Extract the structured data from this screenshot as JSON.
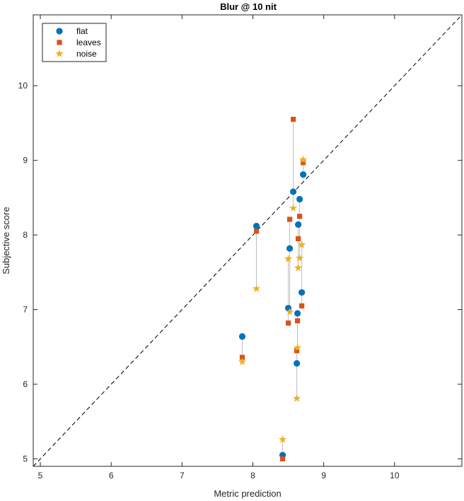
{
  "chart_data": {
    "type": "scatter",
    "title": "Blur @ 10 nit",
    "xlabel": "Metric prediction",
    "ylabel": "Subjective score",
    "xlim": [
      4.9,
      10.95
    ],
    "ylim": [
      4.9,
      10.95
    ],
    "xticks": [
      5,
      6,
      7,
      8,
      9,
      10
    ],
    "yticks": [
      5,
      6,
      7,
      8,
      9,
      10
    ],
    "grid": false,
    "legend_position": "top-left",
    "reference_line": "y = x (dashed)",
    "series": [
      {
        "name": "flat",
        "marker": "circle",
        "color": "#0072BD",
        "points": [
          [
            7.85,
            6.64
          ],
          [
            8.05,
            8.12
          ],
          [
            8.42,
            5.05
          ],
          [
            8.5,
            7.02
          ],
          [
            8.52,
            7.82
          ],
          [
            8.57,
            8.58
          ],
          [
            8.62,
            6.28
          ],
          [
            8.63,
            6.95
          ],
          [
            8.64,
            8.14
          ],
          [
            8.66,
            8.48
          ],
          [
            8.69,
            7.23
          ],
          [
            8.71,
            8.81
          ]
        ]
      },
      {
        "name": "leaves",
        "marker": "square",
        "color": "#D95319",
        "points": [
          [
            7.85,
            6.36
          ],
          [
            8.05,
            8.05
          ],
          [
            8.42,
            5.0
          ],
          [
            8.5,
            6.82
          ],
          [
            8.52,
            8.21
          ],
          [
            8.57,
            9.55
          ],
          [
            8.62,
            6.45
          ],
          [
            8.63,
            6.85
          ],
          [
            8.64,
            7.95
          ],
          [
            8.66,
            8.25
          ],
          [
            8.69,
            7.05
          ],
          [
            8.71,
            8.97
          ]
        ]
      },
      {
        "name": "noise",
        "marker": "star",
        "color": "#EDB120",
        "points": [
          [
            7.85,
            6.3
          ],
          [
            8.05,
            7.28
          ],
          [
            8.42,
            5.26
          ],
          [
            8.5,
            7.68
          ],
          [
            8.52,
            6.97
          ],
          [
            8.57,
            8.36
          ],
          [
            8.62,
            5.81
          ],
          [
            8.63,
            6.49
          ],
          [
            8.64,
            7.56
          ],
          [
            8.66,
            7.69
          ],
          [
            8.69,
            7.87
          ],
          [
            8.71,
            9.01
          ]
        ]
      }
    ]
  }
}
